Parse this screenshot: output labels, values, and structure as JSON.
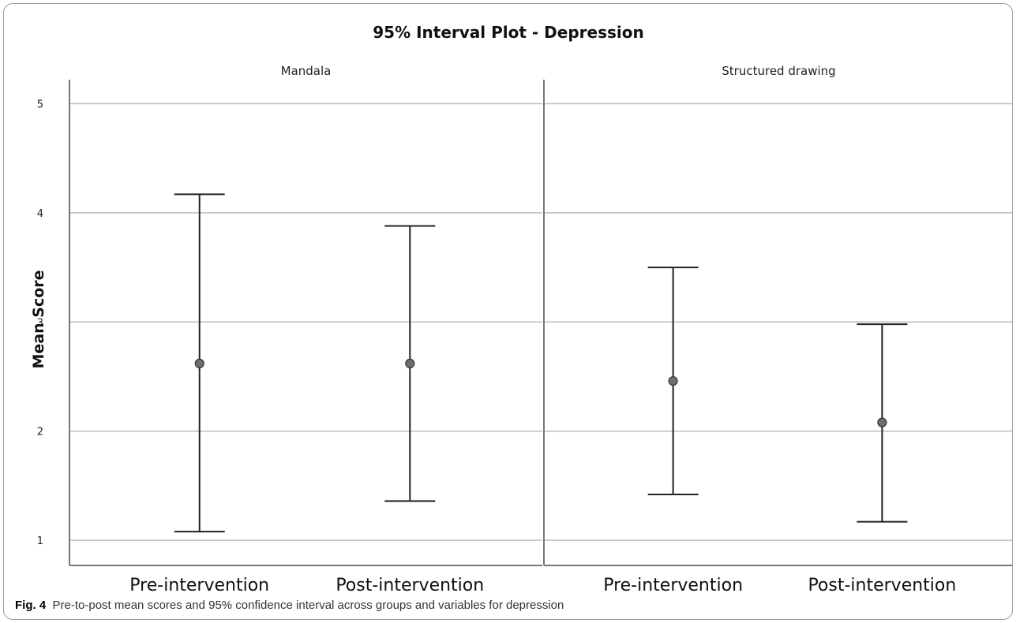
{
  "caption": {
    "label": "Fig. 4",
    "text": "Pre-to-post mean scores and 95% confidence interval across groups and variables for depression"
  },
  "chart_data": {
    "type": "interval",
    "title": "95% Interval Plot - Depression",
    "ylabel": "Mean Score",
    "xlabel": "",
    "ylim": [
      0.77,
      5.22
    ],
    "yticks": [
      1,
      2,
      3,
      4,
      5
    ],
    "grid": true,
    "legend": "none",
    "colors": {
      "marker": "#6e6e6e",
      "line": "#222222",
      "grid": "#bdbdbd",
      "axis": "#777777"
    },
    "categories": [
      "Pre-intervention",
      "Post-intervention"
    ],
    "panels": [
      {
        "name": "Mandala",
        "points": [
          {
            "category": "Pre-intervention",
            "mean": 2.62,
            "lower": 1.08,
            "upper": 4.17
          },
          {
            "category": "Post-intervention",
            "mean": 2.62,
            "lower": 1.36,
            "upper": 3.88
          }
        ]
      },
      {
        "name": "Structured drawing",
        "points": [
          {
            "category": "Pre-intervention",
            "mean": 2.46,
            "lower": 1.42,
            "upper": 3.5
          },
          {
            "category": "Post-intervention",
            "mean": 2.08,
            "lower": 1.17,
            "upper": 2.98
          }
        ]
      }
    ]
  }
}
